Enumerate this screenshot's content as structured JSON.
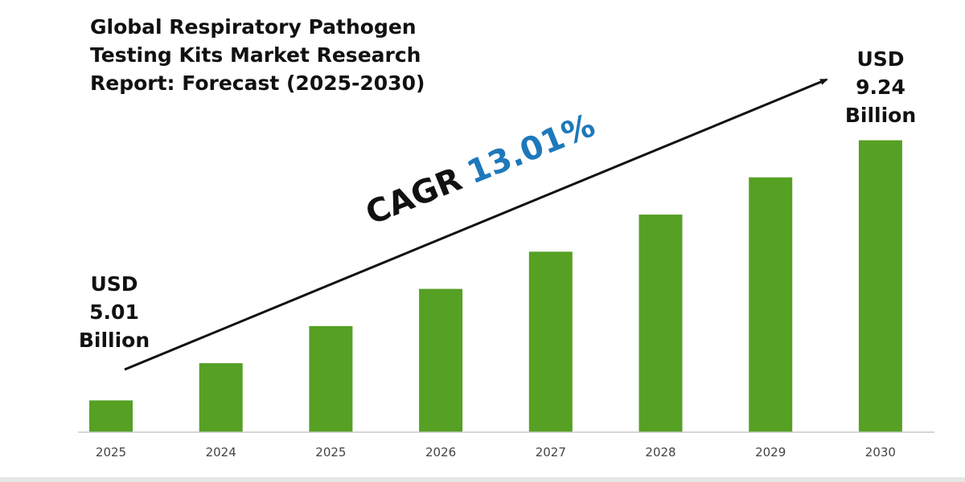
{
  "title": {
    "lines": [
      "Global Respiratory Pathogen",
      "Testing Kits Market Research",
      "Report: Forecast (2025-2030)"
    ]
  },
  "cagr": {
    "prefix": "CAGR",
    "value": "13.01%"
  },
  "start_label": {
    "lines": [
      "USD",
      "5.01",
      "Billion"
    ]
  },
  "end_label": {
    "lines": [
      "USD",
      "9.24",
      "Billion"
    ]
  },
  "colors": {
    "bar": "#56a024",
    "cagr_value": "#1d78bb",
    "text": "#111111",
    "axis": "#c8c8c8",
    "tick": "#444444"
  },
  "chart_data": {
    "type": "bar",
    "categories": [
      "2025",
      "2024",
      "2025",
      "2026",
      "2027",
      "2028",
      "2029",
      "2030"
    ],
    "values": [
      1.2,
      2.6,
      4.0,
      5.4,
      6.8,
      8.2,
      9.6,
      11.0
    ],
    "ylim": [
      0,
      13.5
    ],
    "grid": false,
    "legend": "none",
    "xlabel": "",
    "ylabel": ""
  }
}
